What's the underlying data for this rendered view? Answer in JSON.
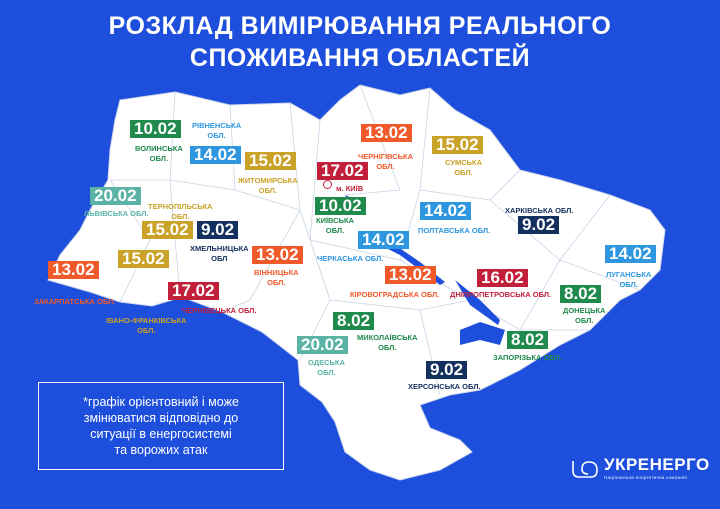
{
  "title": {
    "line1": "РОЗКЛАД ВИМІРЮВАННЯ РЕАЛЬНОГО",
    "line2": "СПОЖИВАННЯ ОБЛАСТЕЙ"
  },
  "colors": {
    "background": "#1d4fdc",
    "map": "#ffffff",
    "green": "#1f8a4c",
    "blue": "#2e97e0",
    "gold": "#c9a227",
    "navy": "#14305e",
    "orange": "#f05a2a",
    "red": "#c21f3a",
    "teal": "#5bb3a6"
  },
  "regions": [
    {
      "id": "volynska",
      "date": "10.02",
      "name": "ВОЛИНСЬКА\nОБЛ.",
      "color": "green"
    },
    {
      "id": "rivnenska",
      "date": "14.02",
      "name": "РІВНЕНСЬКА\nОБЛ.",
      "color": "blue"
    },
    {
      "id": "zhytomyrska",
      "date": "15.02",
      "name": "ЖИТОМИРСЬКА\nОБЛ.",
      "color": "gold"
    },
    {
      "id": "lvivska",
      "date": "20.02",
      "name": "ЛЬВІВСЬКА ОБЛ.",
      "color": "teal"
    },
    {
      "id": "ternopilska",
      "date": "15.02",
      "name": "ТЕРНОПІЛЬСЬКА\nОБЛ.",
      "color": "gold"
    },
    {
      "id": "khmelnytska",
      "date": "9.02",
      "name": "ХМЕЛЬНИЦЬКА\nОБЛ",
      "color": "navy"
    },
    {
      "id": "vinnytska",
      "date": "13.02",
      "name": "ВІННИЦЬКА\nОБЛ.",
      "color": "orange"
    },
    {
      "id": "ivano-frankivska",
      "date": "15.02",
      "name": "ІВАНО-ФРАНКІВСЬКА\nОБЛ.",
      "color": "gold"
    },
    {
      "id": "zakarpatska",
      "date": "13.02",
      "name": "ЗАКАРПАТСЬКА ОБЛ.",
      "color": "orange"
    },
    {
      "id": "chernivetska",
      "date": "17.02",
      "name": "ЧЕРНІВЕЦЬКА ОБЛ.",
      "color": "red"
    },
    {
      "id": "kyiv-city",
      "date": "17.02",
      "name": "м. КИЇВ",
      "color": "red"
    },
    {
      "id": "kyivska",
      "date": "10.02",
      "name": "КИЇВСЬКА\nОБЛ.",
      "color": "green"
    },
    {
      "id": "chernihivska",
      "date": "13.02",
      "name": "ЧЕРНІГІВСЬКА\nОБЛ.",
      "color": "orange"
    },
    {
      "id": "sumska",
      "date": "15.02",
      "name": "СУМСЬКА\nОБЛ.",
      "color": "gold"
    },
    {
      "id": "poltavska",
      "date": "14.02",
      "name": "ПОЛТАВСЬКА ОБЛ.",
      "color": "blue"
    },
    {
      "id": "kharkivska",
      "date": "9.02",
      "name": "ХАРКІВСЬКА ОБЛ.",
      "color": "navy"
    },
    {
      "id": "cherkaska",
      "date": "14.02",
      "name": "ЧЕРКАСЬКА ОБЛ.",
      "color": "blue"
    },
    {
      "id": "luhanska",
      "date": "14.02",
      "name": "ЛУГАНСЬКА\nОБЛ.",
      "color": "blue"
    },
    {
      "id": "kirovohradska",
      "date": "13.02",
      "name": "КІРОВОГРАДСЬКА ОБЛ.",
      "color": "orange"
    },
    {
      "id": "dnipropetrovska",
      "date": "16.02",
      "name": "ДНІПРОПЕТРОВСЬКА ОБЛ.",
      "color": "red"
    },
    {
      "id": "donetska",
      "date": "8.02",
      "name": "ДОНЕЦЬКА\nОБЛ.",
      "color": "green"
    },
    {
      "id": "mykolaivska",
      "date": "8.02",
      "name": "МИКОЛАЇВСЬКА\nОБЛ.",
      "color": "green"
    },
    {
      "id": "odeska",
      "date": "20.02",
      "name": "ОДЕСЬКА\nОБЛ.",
      "color": "teal"
    },
    {
      "id": "zaporizka",
      "date": "8.02",
      "name": "ЗАПОРІЗЬКА ОБЛ.",
      "color": "green"
    },
    {
      "id": "khersonska",
      "date": "9.02",
      "name": "ХЕРСОНСЬКА ОБЛ.",
      "color": "navy"
    }
  ],
  "note": {
    "line1": "*графік орієнтовний і може",
    "line2": "змінюватися відповідно до",
    "line3": "ситуації в енергосистемі",
    "line4": "та ворожих атак"
  },
  "logo": {
    "name": "УКРЕНЕРГО",
    "subtitle": "Національна енергетична компанія"
  }
}
